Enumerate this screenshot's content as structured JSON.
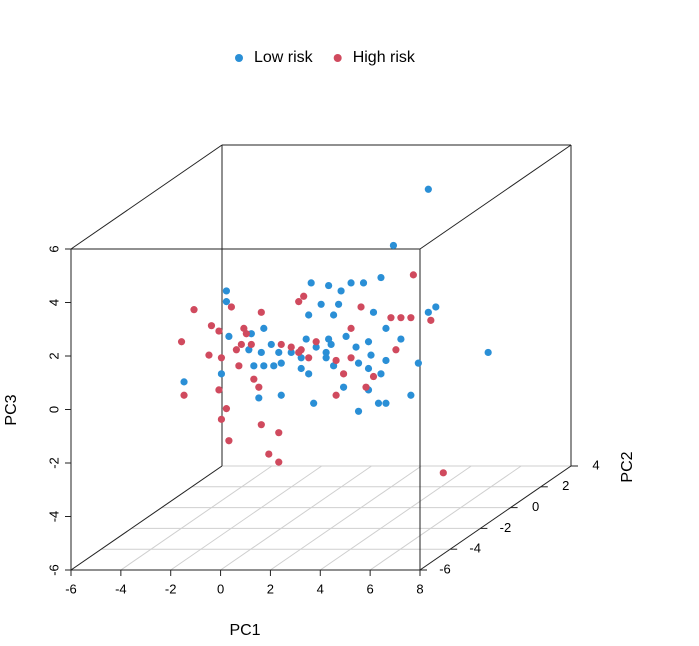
{
  "chart_data": {
    "type": "scatter3d",
    "xlabel": "PC1",
    "ylabel": "PC2",
    "zlabel": "PC3",
    "xlim": [
      -6,
      8
    ],
    "xticks": [
      -6,
      -4,
      -2,
      0,
      2,
      4,
      6,
      8
    ],
    "ylim": [
      -6,
      4
    ],
    "yticks": [
      -6,
      -4,
      -2,
      0,
      2,
      4
    ],
    "zlim": [
      -6,
      6
    ],
    "zticks": [
      -6,
      -4,
      -2,
      0,
      2,
      4,
      6
    ],
    "grid": true,
    "legend": "top",
    "series": [
      {
        "name": "Low risk",
        "color": "#2a8fd6",
        "x": [
          4.7,
          3.3,
          2.8,
          0.0,
          0.7,
          1.2,
          1.6,
          2.1,
          -3.4,
          -3.4,
          0.4,
          1.1,
          -0.1,
          0.9,
          2.5,
          3.0,
          3.6,
          4.7,
          5.0,
          -1.9,
          -2.4,
          -3.3,
          -2.5,
          -2.0,
          -1.6,
          -1.3,
          -0.8,
          -0.4,
          0.2,
          0.7,
          0.8,
          0.6,
          1.4,
          1.8,
          2.3,
          2.4,
          3.0,
          4.3,
          -2.3,
          -1.9,
          -1.5,
          -1.2,
          -0.4,
          -0.1,
          0.9,
          1.9,
          2.3,
          2.8,
          -2.1,
          -1.2,
          0.1,
          -5.1,
          -3.6,
          1.3,
          2.3,
          2.7,
          3.0,
          4.0,
          1.9,
          7.1,
          0.6,
          -0.2
        ],
        "y": [
          0,
          0,
          0,
          0,
          0,
          0,
          0,
          0,
          0,
          0,
          0,
          0,
          0,
          0,
          0,
          0,
          0,
          0,
          0,
          0,
          0,
          0,
          0,
          0,
          0,
          0,
          0,
          0,
          0,
          0,
          0,
          0,
          0,
          0,
          0,
          0,
          0,
          0,
          0,
          0,
          0,
          0,
          0,
          0,
          0,
          0,
          0,
          0,
          0,
          0,
          0,
          0,
          0,
          0,
          0,
          0,
          0,
          0,
          0,
          0,
          0,
          0
        ],
        "z": [
          5.9,
          3.8,
          2.6,
          2.4,
          2.3,
          2.1,
          2.4,
          2.4,
          2.1,
          1.7,
          1.6,
          1.6,
          1.2,
          1.2,
          1.3,
          0.7,
          0.3,
          1.3,
          1.5,
          0.7,
          0.5,
          0.4,
          -0.1,
          -0.2,
          0.1,
          -0.2,
          -0.2,
          -0.4,
          0.0,
          0.3,
          0.1,
          -0.4,
          0.4,
          0.0,
          0.2,
          -0.3,
          -0.5,
          -0.6,
          -0.7,
          -0.7,
          -0.7,
          -0.6,
          -0.8,
          -1.0,
          -0.7,
          -0.6,
          -0.8,
          -1.0,
          -1.9,
          -1.8,
          -2.1,
          -1.3,
          -1.0,
          -1.5,
          -1.6,
          -2.1,
          -2.1,
          -1.8,
          -2.4,
          -0.2,
          -0.2,
          0.3
        ]
      },
      {
        "name": "High risk",
        "color": "#d04a5e",
        "x": [
          -4.7,
          -3.2,
          -2.0,
          -4.0,
          -3.7,
          -2.7,
          -2.6,
          -2.4,
          -1.2,
          -0.8,
          -0.5,
          -0.4,
          -0.1,
          1.0,
          1.6,
          -4.1,
          -3.6,
          -3.0,
          -2.8,
          -2.9,
          -5.2,
          -5.1,
          -3.7,
          -2.3,
          -2.1,
          -3.4,
          -3.6,
          -3.3,
          -2.0,
          -1.3,
          -1.7,
          -1.3,
          -0.5,
          -0.3,
          2.0,
          1.6,
          3.2,
          3.6,
          4.0,
          4.1,
          4.8,
          3.4,
          2.5,
          1.3,
          1.0,
          2.2,
          5.3,
          0.2
        ],
        "y": [
          0,
          0,
          0,
          0,
          0,
          0,
          0,
          0,
          0,
          0,
          0,
          0,
          0,
          0,
          0,
          0,
          0,
          0,
          0,
          0,
          0,
          0,
          0,
          0,
          0,
          0,
          0,
          0,
          0,
          0,
          0,
          0,
          0,
          0,
          0,
          0,
          0,
          0,
          0,
          0,
          0,
          0,
          0,
          0,
          0,
          0,
          0,
          0
        ],
        "z": [
          1.4,
          1.5,
          1.3,
          0.8,
          0.6,
          0.7,
          0.5,
          0.1,
          0.1,
          0.0,
          -0.2,
          -0.1,
          -0.4,
          -0.5,
          -0.4,
          -0.3,
          -0.4,
          -0.1,
          0.1,
          -0.7,
          0.2,
          -1.8,
          -1.6,
          -1.2,
          -1.5,
          -2.3,
          -2.7,
          -3.5,
          -2.9,
          -3.2,
          -4.0,
          -4.3,
          1.7,
          1.9,
          1.5,
          0.7,
          1.1,
          1.1,
          1.1,
          2.7,
          1.0,
          -0.1,
          -1.1,
          -1.0,
          -1.8,
          -1.5,
          -4.7,
          0.2
        ]
      }
    ]
  }
}
